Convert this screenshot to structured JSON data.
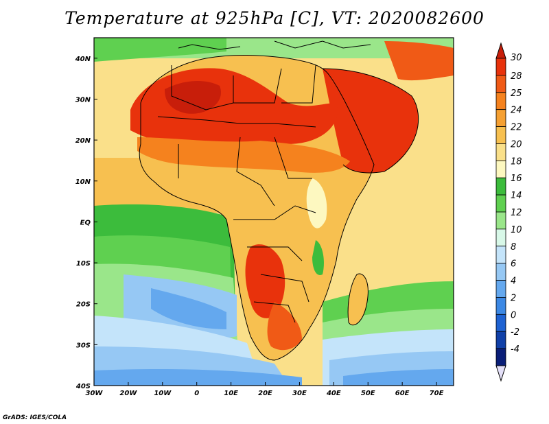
{
  "header": {
    "title": "Temperature at 925hPa [C], VT: 2020082600"
  },
  "footer": {
    "credit": "GrADS: IGES/COLA"
  },
  "map": {
    "lon_range": [
      -30,
      75
    ],
    "lat_range": [
      -40,
      45
    ],
    "x_ticks": [
      {
        "lon": -30,
        "label": "30W"
      },
      {
        "lon": -20,
        "label": "20W"
      },
      {
        "lon": -10,
        "label": "10W"
      },
      {
        "lon": 0,
        "label": "0"
      },
      {
        "lon": 10,
        "label": "10E"
      },
      {
        "lon": 20,
        "label": "20E"
      },
      {
        "lon": 30,
        "label": "30E"
      },
      {
        "lon": 40,
        "label": "40E"
      },
      {
        "lon": 50,
        "label": "50E"
      },
      {
        "lon": 60,
        "label": "60E"
      },
      {
        "lon": 70,
        "label": "70E"
      }
    ],
    "y_ticks": [
      {
        "lat": 40,
        "label": "40N"
      },
      {
        "lat": 30,
        "label": "30N"
      },
      {
        "lat": 20,
        "label": "20N"
      },
      {
        "lat": 10,
        "label": "10N"
      },
      {
        "lat": 0,
        "label": "EQ"
      },
      {
        "lat": -10,
        "label": "10S"
      },
      {
        "lat": -20,
        "label": "20S"
      },
      {
        "lat": -30,
        "label": "30S"
      },
      {
        "lat": -40,
        "label": "40S"
      }
    ],
    "coastline_color": "#000000"
  },
  "colorbar": {
    "labels": [
      "30",
      "28",
      "25",
      "24",
      "22",
      "20",
      "18",
      "16",
      "14",
      "12",
      "10",
      "8",
      "6",
      "4",
      "2",
      "0",
      "-2",
      "-4"
    ],
    "colors": [
      "#e8320c",
      "#f05a16",
      "#f5821e",
      "#f5a032",
      "#f7c050",
      "#fae08a",
      "#fdf8c0",
      "#3cbc3c",
      "#5fd050",
      "#9ae68a",
      "#d8f8e8",
      "#c4e4fa",
      "#96c8f4",
      "#64a8ee",
      "#3c88e4",
      "#1e62d2",
      "#1040a8",
      "#0a1e78"
    ],
    "top_color": "#c81e0a",
    "bottom_color": "#e4e0f8"
  }
}
